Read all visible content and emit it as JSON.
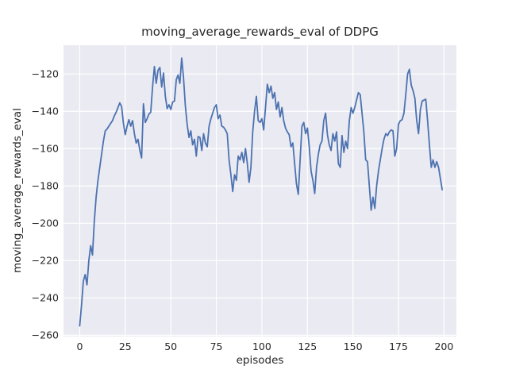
{
  "figure": {
    "title": "moving_average_rewards_eval of DDPG",
    "xlabel": "episodes",
    "ylabel": "moving_average_rewards_eval",
    "background_color": "#ffffff",
    "axes_background_color": "#eaeaf2",
    "grid_color": "#ffffff",
    "line_color": "#4c72b0",
    "text_color": "#262626"
  },
  "chart_data": {
    "type": "line",
    "title": "moving_average_rewards_eval of DDPG",
    "xlabel": "episodes",
    "ylabel": "moving_average_rewards_eval",
    "legend": null,
    "grid": true,
    "grid_style": "seaborn-darkgrid",
    "xlim": [
      -8.9,
      206.8
    ],
    "ylim": [
      -260.7,
      -104.6
    ],
    "x_ticks": [
      0,
      25,
      50,
      75,
      100,
      125,
      150,
      175,
      200
    ],
    "x_tick_labels": [
      "0",
      "25",
      "50",
      "75",
      "100",
      "125",
      "150",
      "175",
      "200"
    ],
    "y_ticks": [
      -260,
      -240,
      -220,
      -200,
      -180,
      -160,
      -140,
      -120
    ],
    "y_tick_labels": [
      "−260",
      "−240",
      "−220",
      "−200",
      "−180",
      "−160",
      "−140",
      "−120"
    ],
    "series_name": "moving_average_rewards_eval",
    "x_start": 0,
    "x_step": 1,
    "values": [
      -255,
      -244,
      -231,
      -227.5,
      -233,
      -220,
      -212,
      -217,
      -199,
      -186,
      -177,
      -170,
      -163,
      -156,
      -150.5,
      -149.5,
      -148,
      -146.5,
      -145,
      -142.5,
      -140.5,
      -138,
      -135.5,
      -137.5,
      -146.5,
      -152.5,
      -148,
      -144.5,
      -148,
      -145,
      -152,
      -157,
      -155,
      -161,
      -165,
      -136,
      -146,
      -144,
      -141.5,
      -140.5,
      -127,
      -116,
      -125,
      -118,
      -116.5,
      -127,
      -119.5,
      -132,
      -138.5,
      -136.5,
      -139,
      -135,
      -134.5,
      -123,
      -120.5,
      -125,
      -111.5,
      -122,
      -137,
      -147,
      -154,
      -150.5,
      -158,
      -155,
      -164,
      -153.5,
      -154,
      -161,
      -152,
      -157,
      -159,
      -148,
      -144,
      -141,
      -138,
      -136.5,
      -144,
      -142,
      -148,
      -148.5,
      -150,
      -152,
      -166,
      -174,
      -183,
      -174,
      -177,
      -164,
      -166,
      -162,
      -167.5,
      -160,
      -168,
      -178,
      -170,
      -151,
      -140,
      -132,
      -145,
      -146,
      -144,
      -150,
      -138,
      -125.5,
      -130,
      -126.5,
      -133,
      -130,
      -139,
      -135,
      -143,
      -138,
      -145,
      -149,
      -151,
      -152.5,
      -159,
      -157,
      -168,
      -179,
      -184.5,
      -166,
      -148,
      -146,
      -152,
      -149,
      -159,
      -172,
      -177,
      -184,
      -170,
      -163,
      -158,
      -156,
      -145,
      -141,
      -152.5,
      -158,
      -161,
      -152,
      -156,
      -151,
      -168,
      -170,
      -153,
      -162,
      -156,
      -160,
      -145,
      -138,
      -141,
      -138,
      -134,
      -130,
      -131,
      -141,
      -151,
      -166,
      -167,
      -180,
      -193,
      -186,
      -192,
      -180,
      -172,
      -166,
      -160,
      -155,
      -152,
      -153,
      -151,
      -150,
      -150.5,
      -164,
      -160,
      -147,
      -145,
      -144.5,
      -141,
      -131,
      -120,
      -117.5,
      -126,
      -129,
      -133,
      -145,
      -152,
      -139,
      -134.5,
      -134,
      -133.5,
      -145,
      -158,
      -170,
      -166,
      -170,
      -167,
      -170,
      -176,
      -182
    ]
  }
}
